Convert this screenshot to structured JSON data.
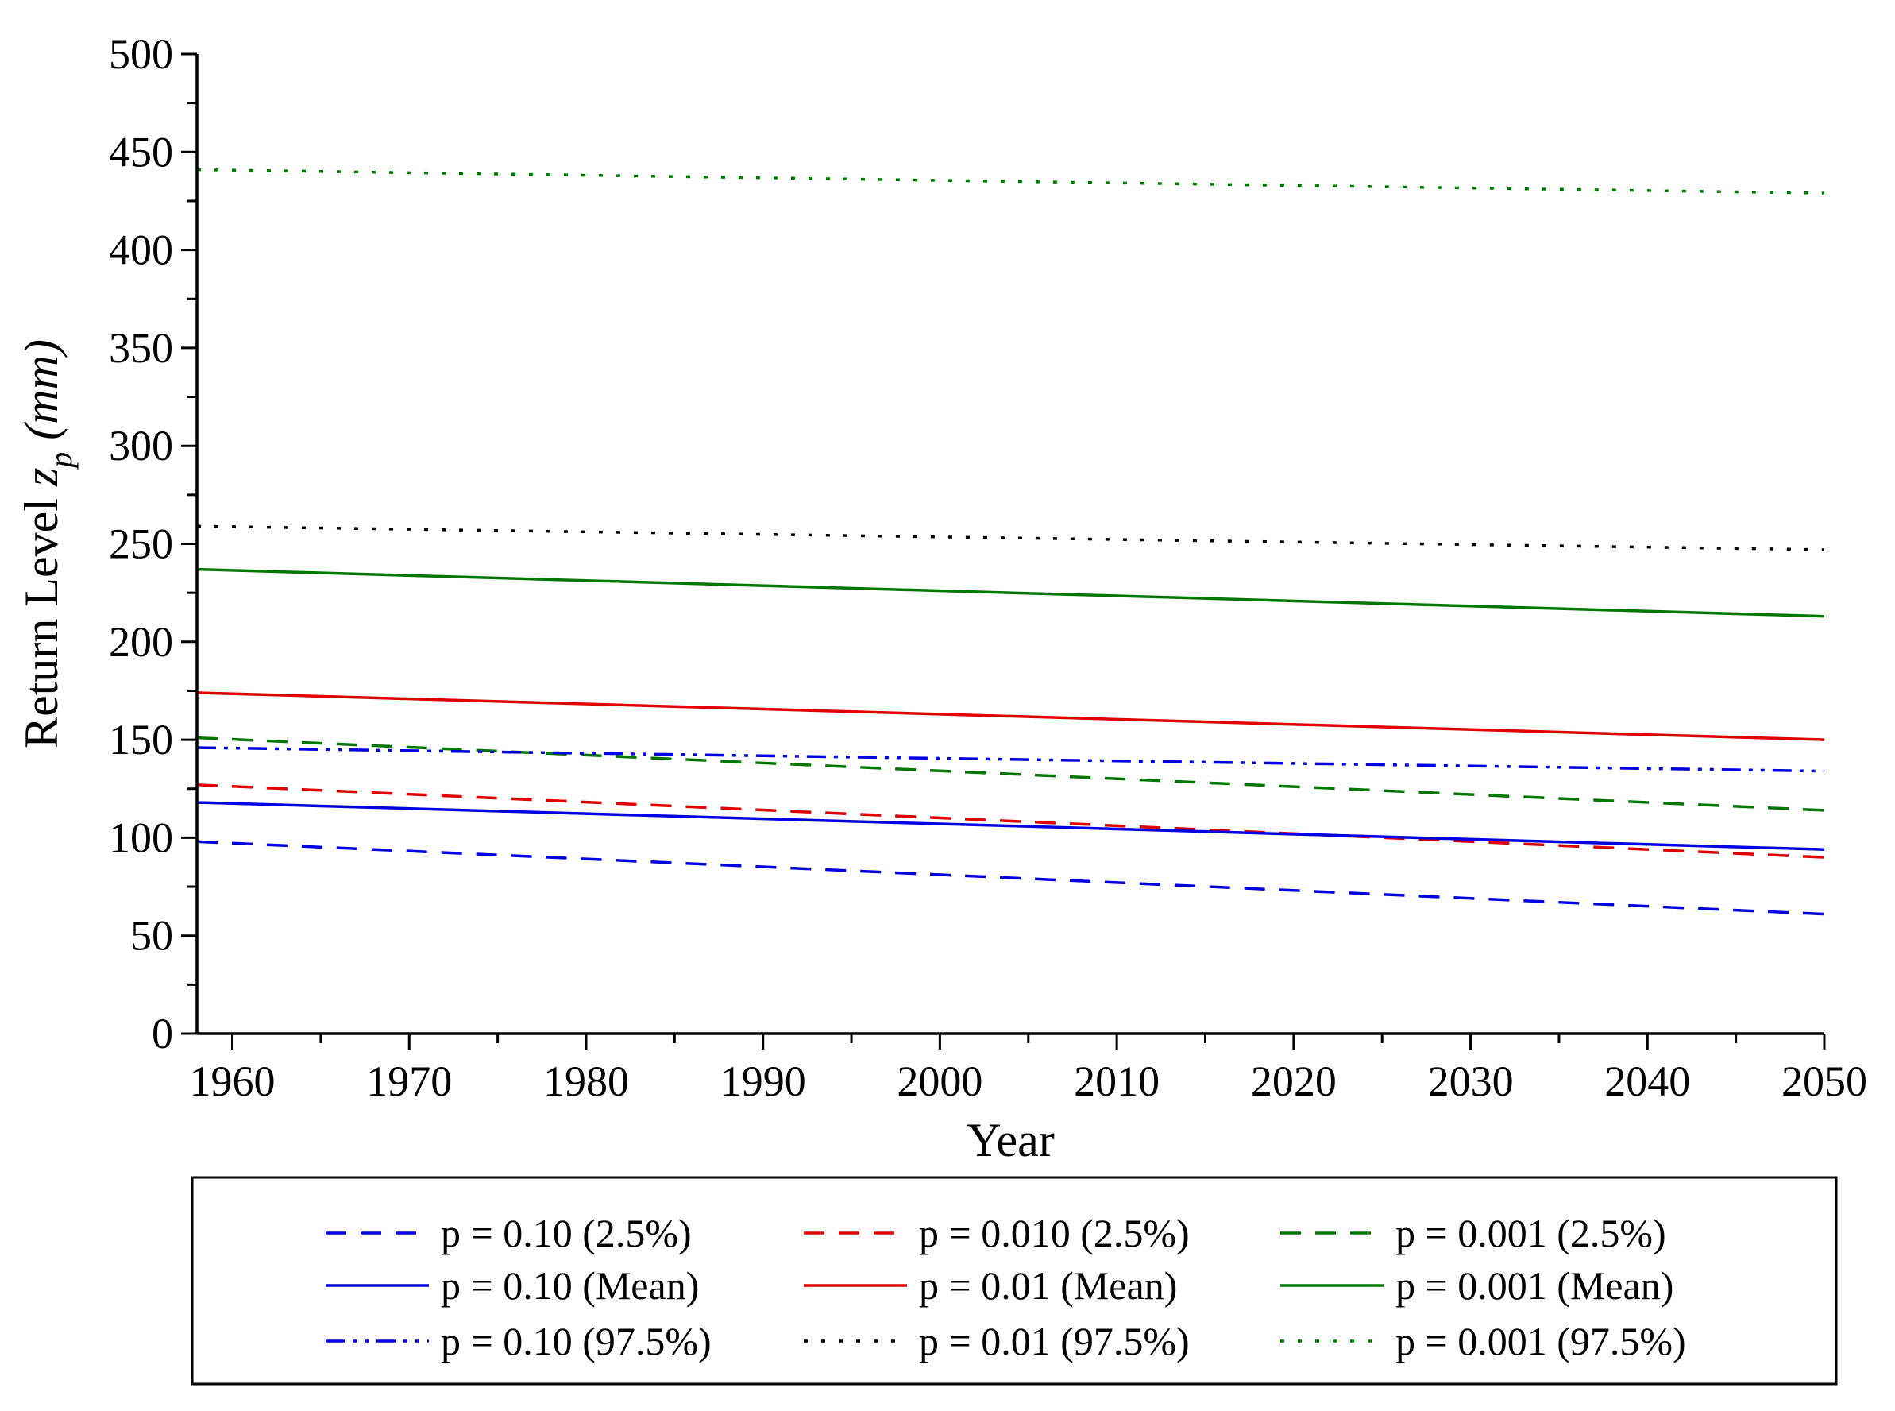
{
  "chart_data": {
    "type": "line",
    "title": "",
    "xlabel": "Year",
    "ylabel_main": "Return Level ",
    "ylabel_var": "z",
    "ylabel_sub": "p",
    "ylabel_unit": " (mm)",
    "xlim": [
      1958,
      2050
    ],
    "ylim": [
      0,
      500
    ],
    "x_ticks": [
      1960,
      1970,
      1980,
      1990,
      2000,
      2010,
      2020,
      2030,
      2040,
      2050
    ],
    "y_ticks": [
      0,
      50,
      100,
      150,
      200,
      250,
      300,
      350,
      400,
      450,
      500
    ],
    "grid": false,
    "legend_position": "bottom",
    "series": [
      {
        "name": "p = 0.10 (2.5%)",
        "color": "#0000e0",
        "style": "dash",
        "x": [
          1958,
          2050
        ],
        "y": [
          98,
          61
        ]
      },
      {
        "name": "p = 0.010 (2.5%)",
        "color": "#e00000",
        "style": "dash",
        "x": [
          1958,
          2050
        ],
        "y": [
          127,
          90
        ]
      },
      {
        "name": "p = 0.001 (2.5%)",
        "color": "#007800",
        "style": "dash",
        "x": [
          1958,
          2050
        ],
        "y": [
          151,
          114
        ]
      },
      {
        "name": "p = 0.10 (Mean)",
        "color": "#0000e0",
        "style": "solid",
        "x": [
          1958,
          2050
        ],
        "y": [
          118,
          94
        ]
      },
      {
        "name": "p = 0.01 (Mean)",
        "color": "#e00000",
        "style": "solid",
        "x": [
          1958,
          2050
        ],
        "y": [
          174,
          150
        ]
      },
      {
        "name": "p = 0.001 (Mean)",
        "color": "#007800",
        "style": "solid",
        "x": [
          1958,
          2050
        ],
        "y": [
          237,
          213
        ]
      },
      {
        "name": "p = 0.10 (97.5%)",
        "color": "#0000e0",
        "style": "dashdotdot",
        "x": [
          1958,
          2050
        ],
        "y": [
          146,
          134
        ]
      },
      {
        "name": "p = 0.01 (97.5%)",
        "color": "#000000",
        "style": "dot",
        "x": [
          1958,
          2050
        ],
        "y": [
          259,
          247
        ]
      },
      {
        "name": "p = 0.001 (97.5%)",
        "color": "#007800",
        "style": "dot",
        "x": [
          1958,
          2050
        ],
        "y": [
          441,
          429
        ]
      }
    ]
  }
}
